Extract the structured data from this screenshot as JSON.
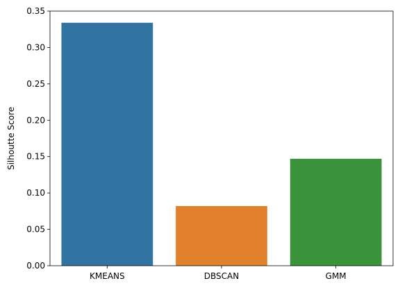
{
  "chart_data": {
    "type": "bar",
    "categories": [
      "KMEANS",
      "DBSCAN",
      "GMM"
    ],
    "values": [
      0.334,
      0.082,
      0.147
    ],
    "colors": [
      "#3274a1",
      "#e1812c",
      "#3a923a"
    ],
    "title": "",
    "xlabel": "",
    "ylabel": "Silhoutte Score",
    "ylim": [
      0,
      0.35
    ],
    "yticks": [
      0.0,
      0.05,
      0.1,
      0.15,
      0.2,
      0.25,
      0.3,
      0.35
    ],
    "ytick_labels": [
      "0.00",
      "0.05",
      "0.10",
      "0.15",
      "0.20",
      "0.25",
      "0.30",
      "0.35"
    ],
    "grid": false,
    "legend": "none"
  }
}
